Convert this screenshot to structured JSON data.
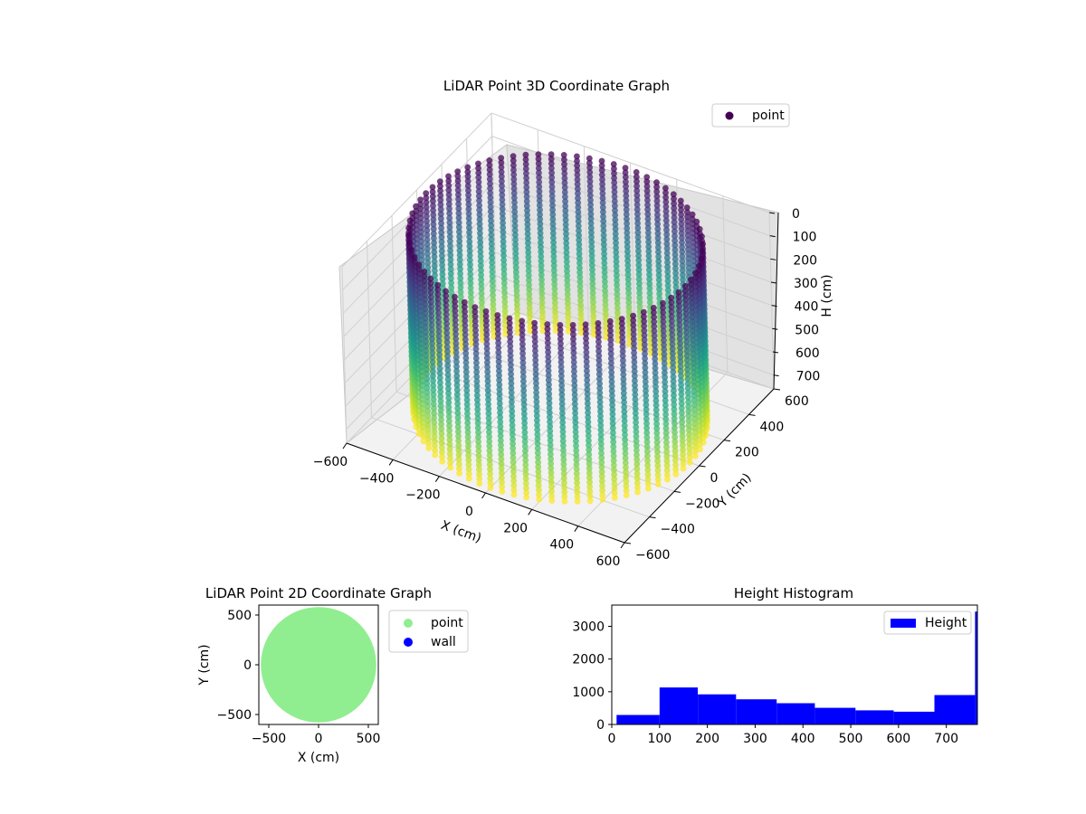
{
  "chart_data": [
    {
      "type": "scatter3d",
      "title": "LiDAR Point 3D Coordinate Graph",
      "xlabel": "X (cm)",
      "ylabel": "Y (cm)",
      "zlabel": "H (cm)",
      "xlim": [
        -600,
        600
      ],
      "ylim": [
        -600,
        600
      ],
      "zlim": [
        0,
        760
      ],
      "z_inverted": true,
      "x_ticks": [
        -600,
        -400,
        -200,
        0,
        200,
        400,
        600
      ],
      "y_ticks": [
        -600,
        -400,
        -200,
        0,
        200,
        400,
        600
      ],
      "z_ticks": [
        0,
        100,
        200,
        300,
        400,
        500,
        600,
        700
      ],
      "colormap": "viridis",
      "grid": true,
      "legend": {
        "position": "top-right",
        "entries": [
          {
            "label": "point",
            "color": "#440154"
          }
        ]
      },
      "shape": {
        "kind": "cylinder-wall",
        "radius_cm": 560,
        "height_cm": 760
      }
    },
    {
      "type": "scatter",
      "title": "LiDAR Point 2D Coordinate Graph",
      "xlabel": "X (cm)",
      "ylabel": "Y (cm)",
      "xlim": [
        -600,
        600
      ],
      "ylim": [
        -600,
        600
      ],
      "x_ticks": [
        -500,
        0,
        500
      ],
      "y_ticks": [
        -500,
        0,
        500
      ],
      "series": [
        {
          "name": "point",
          "color": "#90ee90",
          "shape": "filled-disk",
          "radius_cm": 580
        },
        {
          "name": "wall",
          "color": "#0000ff",
          "points": []
        }
      ],
      "legend": {
        "position": "outside-right",
        "entries": [
          {
            "label": "point",
            "color": "#90ee90"
          },
          {
            "label": "wall",
            "color": "#0000ff"
          }
        ]
      }
    },
    {
      "type": "histogram",
      "title": "Height Histogram",
      "xlim": [
        0,
        765
      ],
      "ylim": [
        0,
        3650
      ],
      "x_ticks": [
        0,
        100,
        200,
        300,
        400,
        500,
        600,
        700
      ],
      "y_ticks": [
        0,
        1000,
        2000,
        3000
      ],
      "color": "#0000ff",
      "series": [
        {
          "name": "Height"
        }
      ],
      "bins": [
        {
          "x0": 10,
          "x1": 100,
          "count": 290
        },
        {
          "x0": 100,
          "x1": 180,
          "count": 1130
        },
        {
          "x0": 180,
          "x1": 260,
          "count": 920
        },
        {
          "x0": 260,
          "x1": 345,
          "count": 770
        },
        {
          "x0": 345,
          "x1": 425,
          "count": 650
        },
        {
          "x0": 425,
          "x1": 510,
          "count": 510
        },
        {
          "x0": 510,
          "x1": 590,
          "count": 430
        },
        {
          "x0": 590,
          "x1": 675,
          "count": 390
        },
        {
          "x0": 675,
          "x1": 760,
          "count": 900
        },
        {
          "x0": 760,
          "x1": 765,
          "count": 3450
        }
      ],
      "legend": {
        "position": "top-right",
        "entries": [
          {
            "label": "Height",
            "color": "#0000ff"
          }
        ]
      }
    }
  ]
}
